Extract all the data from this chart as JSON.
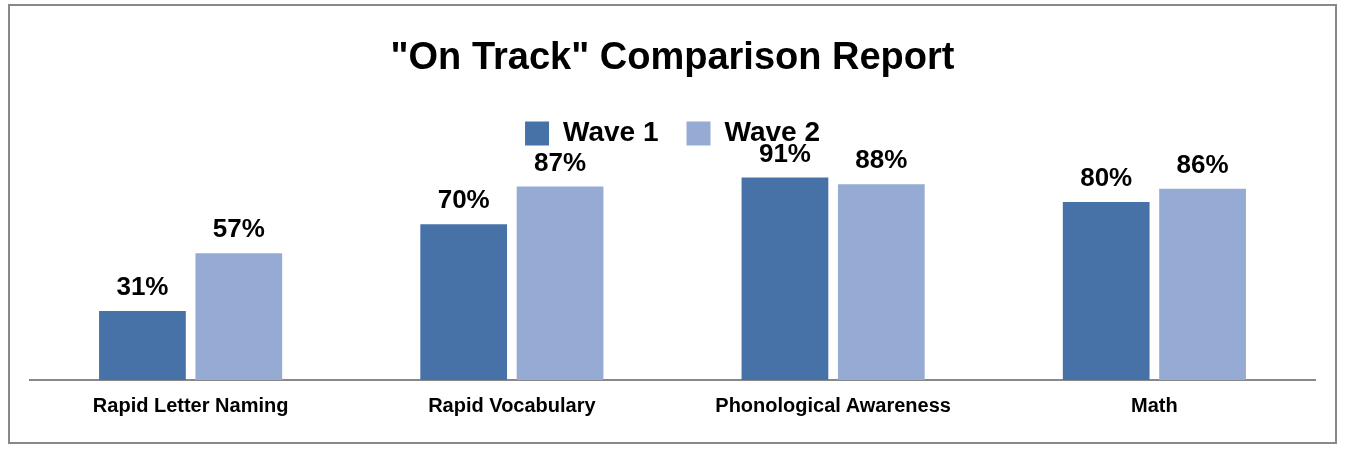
{
  "chart_data": {
    "type": "bar",
    "title": "\"On Track\" Comparison Report",
    "categories": [
      "Rapid Letter Naming",
      "Rapid Vocabulary",
      "Phonological Awareness",
      "Math"
    ],
    "series": [
      {
        "name": "Wave 1",
        "color": "#4672a8",
        "values": [
          31,
          70,
          91,
          80
        ],
        "value_labels": [
          "31%",
          "70%",
          "91%",
          "80%"
        ]
      },
      {
        "name": "Wave 2",
        "color": "#95abd3",
        "values": [
          57,
          87,
          88,
          86
        ],
        "value_labels": [
          "57%",
          "87%",
          "88%",
          "86%"
        ]
      }
    ],
    "legend": "top",
    "grid": false
  }
}
